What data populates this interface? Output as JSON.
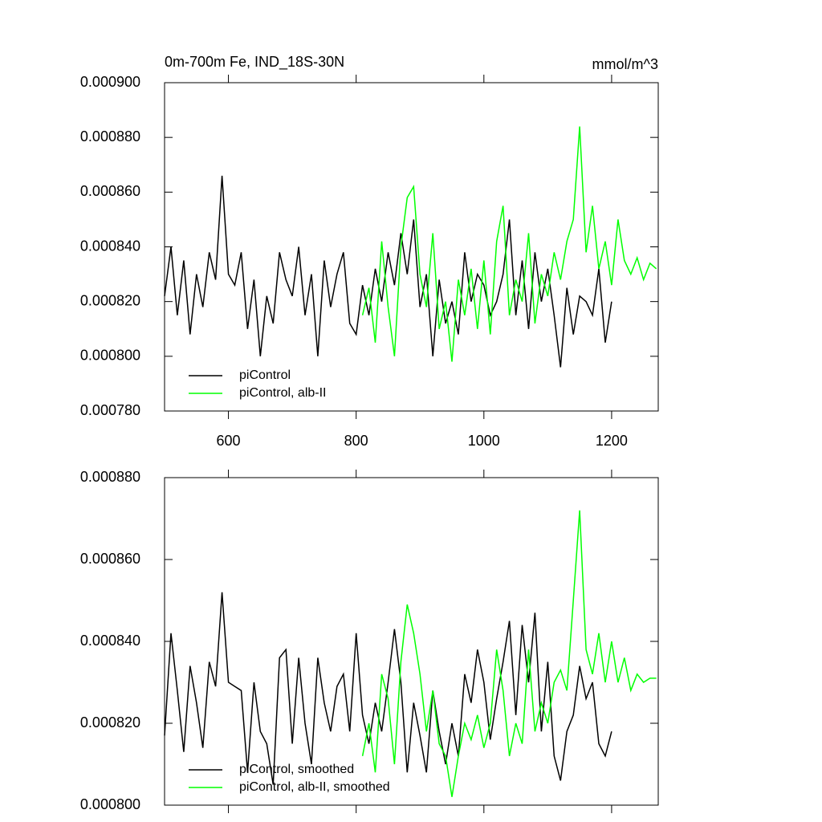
{
  "chart_data": [
    {
      "type": "line",
      "title": "0m-700m Fe, IND_18S-30N",
      "units": "mmol/m^3",
      "x": [
        500,
        510,
        520,
        530,
        540,
        550,
        560,
        570,
        580,
        590,
        600,
        610,
        620,
        630,
        640,
        650,
        660,
        670,
        680,
        690,
        700,
        710,
        720,
        730,
        740,
        750,
        760,
        770,
        780,
        790,
        800,
        810,
        820,
        830,
        840,
        850,
        860,
        870,
        880,
        890,
        900,
        910,
        920,
        930,
        940,
        950,
        960,
        970,
        980,
        990,
        1000,
        1010,
        1020,
        1030,
        1040,
        1050,
        1060,
        1070,
        1080,
        1090,
        1100,
        1110,
        1120,
        1130,
        1140,
        1150,
        1160,
        1170,
        1180,
        1190,
        1200,
        1210,
        1220,
        1230,
        1240,
        1250,
        1260,
        1270
      ],
      "series": [
        {
          "name": "piControl",
          "color": "#000000",
          "values": [
            0.000822,
            0.00084,
            0.000815,
            0.000835,
            0.000808,
            0.00083,
            0.000818,
            0.000838,
            0.000828,
            0.000866,
            0.00083,
            0.000826,
            0.000838,
            0.00081,
            0.000828,
            0.0008,
            0.000822,
            0.000812,
            0.000838,
            0.000828,
            0.000822,
            0.00084,
            0.000815,
            0.00083,
            0.0008,
            0.000835,
            0.000818,
            0.00083,
            0.000838,
            0.000812,
            0.000808,
            0.000826,
            0.000815,
            0.000832,
            0.00082,
            0.000838,
            0.000826,
            0.000845,
            0.00083,
            0.00085,
            0.000818,
            0.00083,
            0.0008,
            0.000828,
            0.000812,
            0.00082,
            0.000808,
            0.000838,
            0.00082,
            0.00083,
            0.000826,
            0.000815,
            0.00082,
            0.00083,
            0.00085,
            0.000815,
            0.000835,
            0.00081,
            0.000838,
            0.00082,
            0.000832,
            0.000815,
            0.000796,
            0.000825,
            0.000808,
            0.000822,
            0.00082,
            0.000815,
            0.000832,
            0.000805,
            0.00082,
            null,
            null,
            null,
            null,
            null,
            null,
            null
          ]
        },
        {
          "name": "piControl, alb-II",
          "color": "#00ff00",
          "values": [
            null,
            null,
            null,
            null,
            null,
            null,
            null,
            null,
            null,
            null,
            null,
            null,
            null,
            null,
            null,
            null,
            null,
            null,
            null,
            null,
            null,
            null,
            null,
            null,
            null,
            null,
            null,
            null,
            null,
            null,
            null,
            0.000815,
            0.000825,
            0.000805,
            0.000842,
            0.000818,
            0.0008,
            0.00084,
            0.000858,
            0.000862,
            0.00083,
            0.000818,
            0.000845,
            0.00081,
            0.00082,
            0.000798,
            0.000828,
            0.000815,
            0.000832,
            0.00081,
            0.000835,
            0.000808,
            0.000842,
            0.000855,
            0.000815,
            0.000828,
            0.00082,
            0.000845,
            0.000812,
            0.00083,
            0.000822,
            0.000838,
            0.000828,
            0.000842,
            0.00085,
            0.000884,
            0.000838,
            0.000855,
            0.000832,
            0.000842,
            0.000826,
            0.00085,
            0.000835,
            0.00083,
            0.000836,
            0.000828,
            0.000834,
            0.000832
          ]
        }
      ],
      "xlim": [
        500,
        1273
      ],
      "xticks": [
        600,
        800,
        1000,
        1200
      ],
      "xtick_labels": true,
      "ylim": [
        0.00078,
        0.0009
      ],
      "yticks": [
        {
          "value": 0.00078,
          "label": "0.000780"
        },
        {
          "value": 0.0008,
          "label": "0.000800"
        },
        {
          "value": 0.00082,
          "label": "0.000820"
        },
        {
          "value": 0.00084,
          "label": "0.000840"
        },
        {
          "value": 0.00086,
          "label": "0.000860"
        },
        {
          "value": 0.00088,
          "label": "0.000880"
        },
        {
          "value": 0.0009,
          "label": "0.000900"
        }
      ],
      "legend": "lower left"
    },
    {
      "type": "line",
      "x": [
        500,
        510,
        520,
        530,
        540,
        550,
        560,
        570,
        580,
        590,
        600,
        610,
        620,
        630,
        640,
        650,
        660,
        670,
        680,
        690,
        700,
        710,
        720,
        730,
        740,
        750,
        760,
        770,
        780,
        790,
        800,
        810,
        820,
        830,
        840,
        850,
        860,
        870,
        880,
        890,
        900,
        910,
        920,
        930,
        940,
        950,
        960,
        970,
        980,
        990,
        1000,
        1010,
        1020,
        1030,
        1040,
        1050,
        1060,
        1070,
        1080,
        1090,
        1100,
        1110,
        1120,
        1130,
        1140,
        1150,
        1160,
        1170,
        1180,
        1190,
        1200,
        1210,
        1220,
        1230,
        1240,
        1250,
        1260,
        1270
      ],
      "series": [
        {
          "name": "piControl, smoothed",
          "color": "#000000",
          "values": [
            0.000817,
            0.000842,
            0.000828,
            0.000813,
            0.000834,
            0.000825,
            0.000814,
            0.000835,
            0.000829,
            0.000852,
            0.00083,
            0.000829,
            0.000828,
            0.000808,
            0.00083,
            0.000818,
            0.000815,
            0.000805,
            0.000836,
            0.000838,
            0.000815,
            0.000836,
            0.00082,
            0.00081,
            0.000836,
            0.000825,
            0.000818,
            0.000829,
            0.000832,
            0.000818,
            0.000842,
            0.000822,
            0.000815,
            0.000825,
            0.000818,
            0.00083,
            0.000843,
            0.00083,
            0.000808,
            0.000825,
            0.000817,
            0.000808,
            0.000828,
            0.000818,
            0.00081,
            0.00082,
            0.000812,
            0.000832,
            0.000825,
            0.000838,
            0.00083,
            0.000816,
            0.000826,
            0.000835,
            0.000845,
            0.000822,
            0.000844,
            0.00083,
            0.000847,
            0.000818,
            0.000835,
            0.000812,
            0.000806,
            0.000818,
            0.000822,
            0.000834,
            0.000826,
            0.00083,
            0.000815,
            0.000812,
            0.000818,
            null,
            null,
            null,
            null,
            null,
            null,
            null
          ]
        },
        {
          "name": "piControl, alb-II, smoothed",
          "color": "#00ff00",
          "values": [
            null,
            null,
            null,
            null,
            null,
            null,
            null,
            null,
            null,
            null,
            null,
            null,
            null,
            null,
            null,
            null,
            null,
            null,
            null,
            null,
            null,
            null,
            null,
            null,
            null,
            null,
            null,
            null,
            null,
            null,
            null,
            0.000812,
            0.00082,
            0.000808,
            0.000832,
            0.000826,
            0.00081,
            0.000835,
            0.000849,
            0.000842,
            0.000832,
            0.000818,
            0.000828,
            0.000815,
            0.000812,
            0.000802,
            0.000812,
            0.00082,
            0.000816,
            0.000822,
            0.000814,
            0.00082,
            0.000838,
            0.000828,
            0.000812,
            0.00082,
            0.000815,
            0.000838,
            0.000818,
            0.000825,
            0.00082,
            0.00083,
            0.000833,
            0.000828,
            0.00085,
            0.000872,
            0.000838,
            0.000832,
            0.000842,
            0.00083,
            0.00084,
            0.00083,
            0.000836,
            0.000828,
            0.000832,
            0.00083,
            0.000831,
            0.000831
          ]
        }
      ],
      "xlim": [
        500,
        1273
      ],
      "xticks": [
        600,
        800,
        1000,
        1200
      ],
      "xtick_labels": false,
      "ylim": [
        0.0008,
        0.00088
      ],
      "yticks": [
        {
          "value": 0.0008,
          "label": "0.000800"
        },
        {
          "value": 0.00082,
          "label": "0.000820"
        },
        {
          "value": 0.00084,
          "label": "0.000840"
        },
        {
          "value": 0.00086,
          "label": "0.000860"
        },
        {
          "value": 0.00088,
          "label": "0.000880"
        }
      ],
      "legend": "lower left"
    }
  ]
}
